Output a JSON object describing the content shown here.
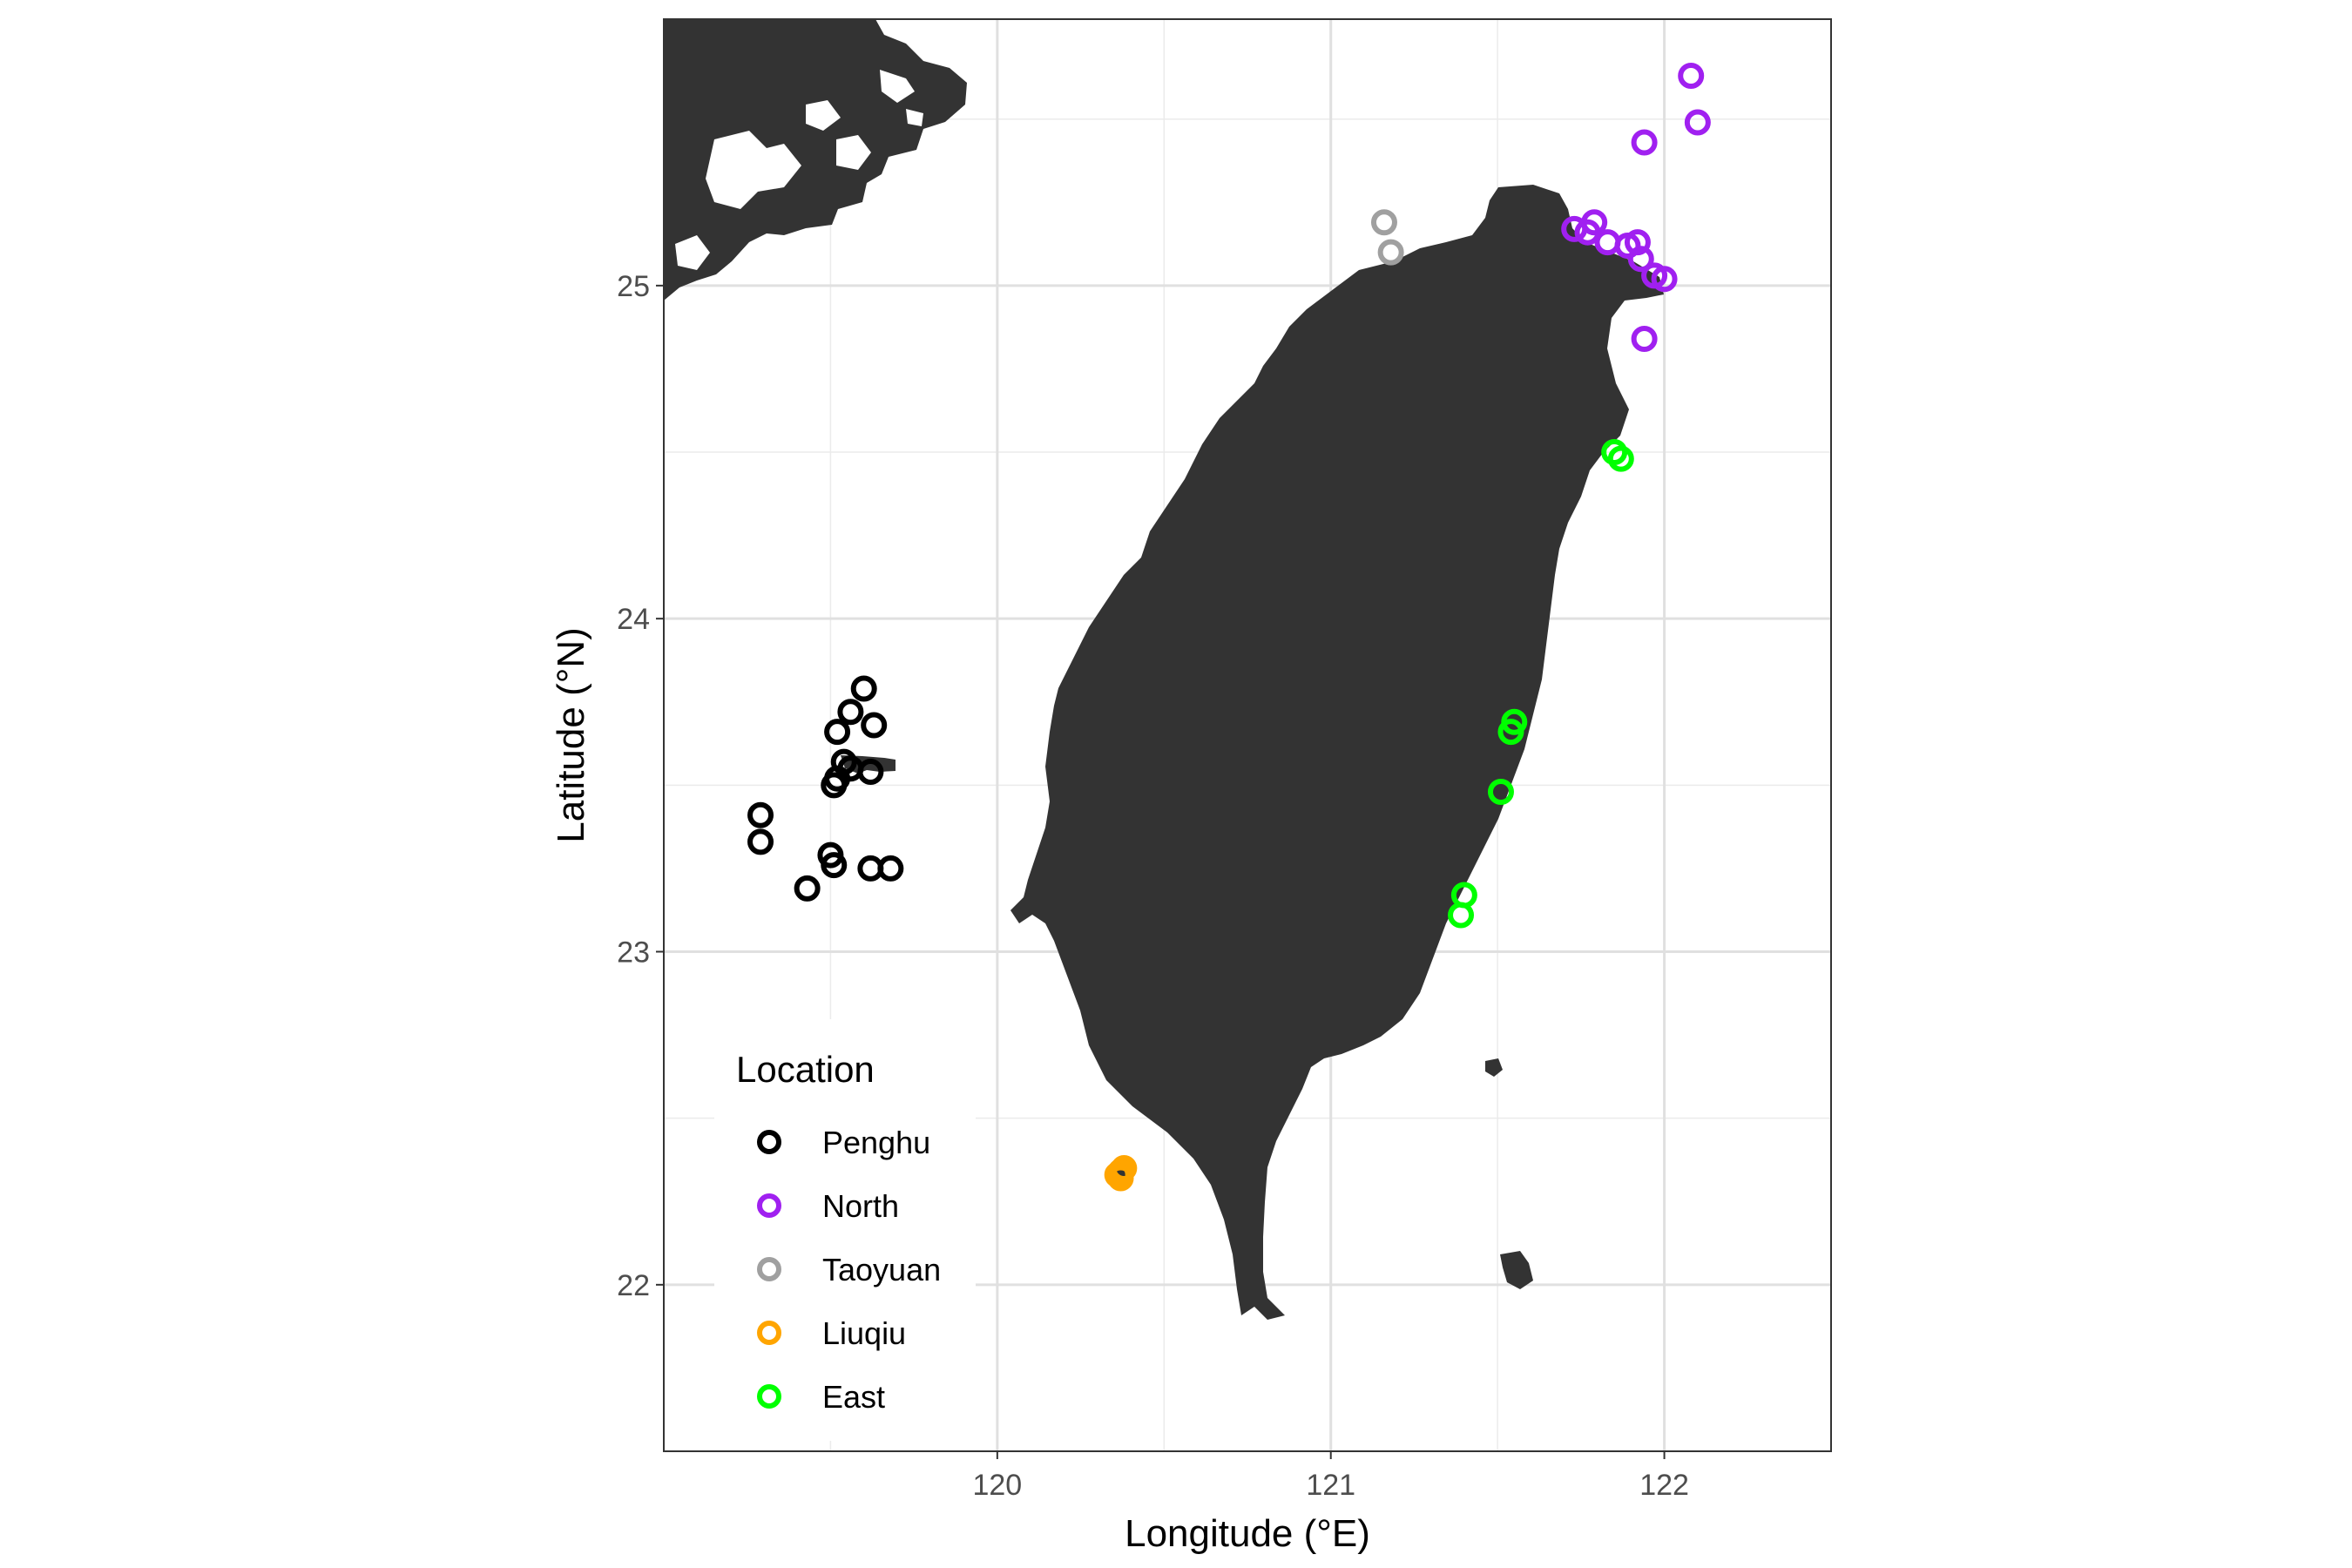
{
  "map": {
    "xlabel": "Longitude (°E)",
    "ylabel": "Latitude (°N)",
    "xlim": [
      119.0,
      122.5
    ],
    "ylim": [
      21.5,
      25.8
    ],
    "x_ticks": [
      120,
      121,
      122
    ],
    "y_ticks": [
      22,
      23,
      24,
      25
    ],
    "grid": true,
    "land_color": "#333333",
    "legend": {
      "title": "Location",
      "placement": "bottom-left",
      "entries": [
        {
          "label": "Penghu",
          "color": "#000000"
        },
        {
          "label": "North",
          "color": "#a020f0"
        },
        {
          "label": "Taoyuan",
          "color": "#a0a0a0"
        },
        {
          "label": "Liuqiu",
          "color": "#ffa500"
        },
        {
          "label": "East",
          "color": "#00ff00"
        }
      ]
    }
  },
  "chart_data": {
    "type": "scatter",
    "xlabel": "Longitude (°E)",
    "ylabel": "Latitude (°N)",
    "xlim": [
      119.0,
      122.5
    ],
    "ylim": [
      21.5,
      25.8
    ],
    "series": [
      {
        "name": "Penghu",
        "color": "#000000",
        "points": [
          [
            119.6,
            23.79
          ],
          [
            119.56,
            23.72
          ],
          [
            119.52,
            23.66
          ],
          [
            119.63,
            23.68
          ],
          [
            119.54,
            23.57
          ],
          [
            119.56,
            23.55
          ],
          [
            119.52,
            23.52
          ],
          [
            119.51,
            23.5
          ],
          [
            119.62,
            23.54
          ],
          [
            119.29,
            23.41
          ],
          [
            119.29,
            23.33
          ],
          [
            119.5,
            23.29
          ],
          [
            119.51,
            23.26
          ],
          [
            119.62,
            23.25
          ],
          [
            119.68,
            23.25
          ],
          [
            119.43,
            23.19
          ]
        ]
      },
      {
        "name": "North",
        "color": "#a020f0",
        "points": [
          [
            122.08,
            25.63
          ],
          [
            122.1,
            25.49
          ],
          [
            121.94,
            25.43
          ],
          [
            121.79,
            25.19
          ],
          [
            121.73,
            25.17
          ],
          [
            121.77,
            25.16
          ],
          [
            121.83,
            25.13
          ],
          [
            121.89,
            25.12
          ],
          [
            121.92,
            25.13
          ],
          [
            121.93,
            25.08
          ],
          [
            121.97,
            25.03
          ],
          [
            122.0,
            25.02
          ],
          [
            121.94,
            24.84
          ]
        ]
      },
      {
        "name": "Taoyuan",
        "color": "#a0a0a0",
        "points": [
          [
            121.16,
            25.19
          ],
          [
            121.18,
            25.1
          ]
        ]
      },
      {
        "name": "Liuqiu",
        "color": "#ffa500",
        "points": [
          [
            120.36,
            22.33
          ],
          [
            120.37,
            22.34
          ],
          [
            120.38,
            22.35
          ],
          [
            120.37,
            22.32
          ]
        ]
      },
      {
        "name": "East",
        "color": "#00ff00",
        "points": [
          [
            121.85,
            24.5
          ],
          [
            121.87,
            24.48
          ],
          [
            121.55,
            23.69
          ],
          [
            121.54,
            23.66
          ],
          [
            121.51,
            23.48
          ],
          [
            121.4,
            23.17
          ],
          [
            121.39,
            23.11
          ]
        ]
      }
    ]
  }
}
